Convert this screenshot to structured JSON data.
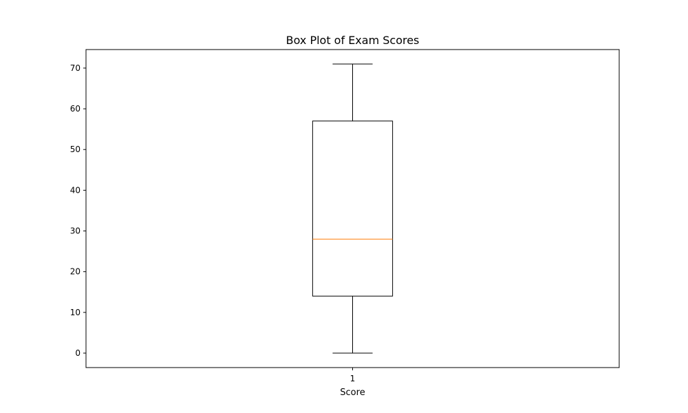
{
  "chart_data": {
    "type": "box",
    "title": "Box Plot of Exam Scores",
    "xlabel": "Score",
    "ylabel": "",
    "categories": [
      "1"
    ],
    "boxes": [
      {
        "label": "1",
        "whisker_low": 0,
        "q1": 14,
        "median": 28,
        "q3": 57,
        "whisker_high": 71
      }
    ],
    "ylim": [
      -3.55,
      74.55
    ],
    "yticks": [
      0,
      10,
      20,
      30,
      40,
      50,
      60,
      70
    ],
    "xlim": [
      0.5,
      1.5
    ],
    "grid": false,
    "legend": "none",
    "colors": {
      "box": "#000000",
      "median": "#ff7f0e",
      "whisker": "#000000",
      "axes": "#000000"
    }
  }
}
